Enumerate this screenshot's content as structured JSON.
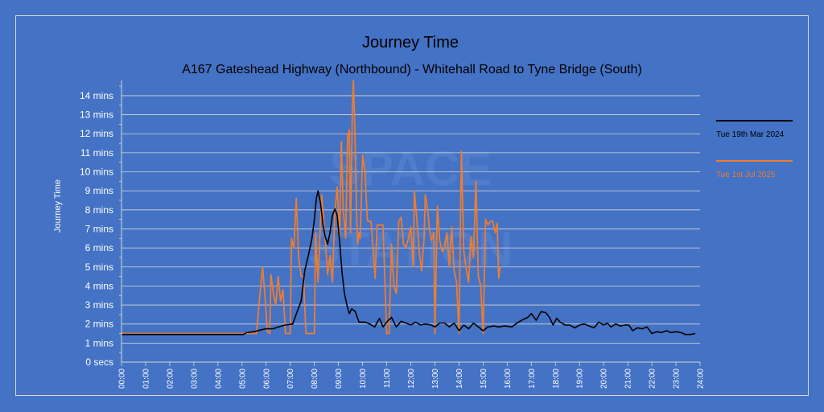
{
  "chart_data": {
    "type": "line",
    "title": "Journey Time",
    "subtitle": "A167 Gateshead Highway (Northbound) - Whitehall Road to Tyne Bridge (South)",
    "ylabel": "Journey Time",
    "xlabel": "",
    "y_unit": "mins",
    "ylim": [
      0,
      14.8
    ],
    "xlim": [
      0,
      24
    ],
    "y_ticks": [
      "0 secs",
      "1 mins",
      "2 mins",
      "3 mins",
      "4 mins",
      "5 mins",
      "6 mins",
      "7 mins",
      "8 mins",
      "9 mins",
      "10 mins",
      "11 mins",
      "12 mins",
      "13 mins",
      "14 mins"
    ],
    "x_ticks": [
      "00:00",
      "01:00",
      "02:00",
      "03:00",
      "04:00",
      "05:00",
      "06:00",
      "07:00",
      "08:00",
      "09:00",
      "10:00",
      "11:00",
      "12:00",
      "13:00",
      "14:00",
      "15:00",
      "16:00",
      "17:00",
      "18:00",
      "19:00",
      "20:00",
      "21:00",
      "22:00",
      "23:00",
      "24:00"
    ],
    "grid": true,
    "legend_position": "right",
    "series": [
      {
        "name": "Tue 19th Mar 2024",
        "color": "#000000",
        "points": [
          [
            0,
            1.45
          ],
          [
            5.05,
            1.45
          ],
          [
            5.2,
            1.55
          ],
          [
            5.5,
            1.6
          ],
          [
            5.8,
            1.7
          ],
          [
            6.0,
            1.75
          ],
          [
            6.3,
            1.75
          ],
          [
            6.5,
            1.85
          ],
          [
            6.8,
            1.95
          ],
          [
            7.1,
            2.0
          ],
          [
            7.3,
            2.7
          ],
          [
            7.45,
            3.2
          ],
          [
            7.6,
            4.8
          ],
          [
            7.75,
            5.6
          ],
          [
            7.9,
            6.5
          ],
          [
            8.0,
            7.5
          ],
          [
            8.08,
            8.6
          ],
          [
            8.15,
            9.0
          ],
          [
            8.25,
            8.4
          ],
          [
            8.35,
            7.3
          ],
          [
            8.45,
            6.6
          ],
          [
            8.55,
            6.2
          ],
          [
            8.65,
            6.8
          ],
          [
            8.75,
            7.7
          ],
          [
            8.85,
            8.05
          ],
          [
            8.95,
            7.7
          ],
          [
            9.05,
            6.3
          ],
          [
            9.15,
            4.7
          ],
          [
            9.25,
            3.6
          ],
          [
            9.35,
            3.0
          ],
          [
            9.45,
            2.55
          ],
          [
            9.55,
            2.8
          ],
          [
            9.7,
            2.65
          ],
          [
            9.85,
            2.1
          ],
          [
            10.1,
            2.1
          ],
          [
            10.3,
            2.0
          ],
          [
            10.5,
            1.85
          ],
          [
            10.7,
            2.3
          ],
          [
            10.85,
            1.85
          ],
          [
            11.0,
            2.1
          ],
          [
            11.2,
            2.35
          ],
          [
            11.4,
            1.85
          ],
          [
            11.6,
            2.15
          ],
          [
            11.8,
            2.05
          ],
          [
            12.0,
            1.95
          ],
          [
            12.2,
            2.1
          ],
          [
            12.4,
            1.95
          ],
          [
            12.6,
            2.0
          ],
          [
            12.85,
            1.95
          ],
          [
            13.0,
            1.85
          ],
          [
            13.2,
            2.05
          ],
          [
            13.4,
            2.05
          ],
          [
            13.6,
            1.85
          ],
          [
            13.8,
            2.05
          ],
          [
            14.0,
            1.65
          ],
          [
            14.2,
            1.95
          ],
          [
            14.4,
            1.75
          ],
          [
            14.6,
            2.05
          ],
          [
            14.8,
            1.85
          ],
          [
            15.0,
            1.65
          ],
          [
            15.2,
            1.85
          ],
          [
            15.45,
            1.9
          ],
          [
            15.65,
            1.85
          ],
          [
            15.9,
            1.9
          ],
          [
            16.2,
            1.85
          ],
          [
            16.4,
            2.05
          ],
          [
            16.6,
            2.2
          ],
          [
            16.85,
            2.35
          ],
          [
            17.0,
            2.55
          ],
          [
            17.2,
            2.2
          ],
          [
            17.4,
            2.65
          ],
          [
            17.6,
            2.6
          ],
          [
            17.75,
            2.35
          ],
          [
            17.9,
            1.95
          ],
          [
            18.05,
            2.3
          ],
          [
            18.2,
            2.1
          ],
          [
            18.4,
            1.95
          ],
          [
            18.6,
            1.95
          ],
          [
            18.8,
            1.8
          ],
          [
            19.0,
            1.95
          ],
          [
            19.2,
            2.0
          ],
          [
            19.4,
            1.9
          ],
          [
            19.6,
            1.8
          ],
          [
            19.8,
            2.1
          ],
          [
            20.0,
            1.95
          ],
          [
            20.15,
            2.05
          ],
          [
            20.3,
            1.85
          ],
          [
            20.5,
            2.0
          ],
          [
            20.7,
            1.9
          ],
          [
            20.9,
            1.95
          ],
          [
            21.05,
            1.95
          ],
          [
            21.2,
            1.65
          ],
          [
            21.4,
            1.8
          ],
          [
            21.6,
            1.75
          ],
          [
            21.8,
            1.85
          ],
          [
            22.0,
            1.5
          ],
          [
            22.2,
            1.6
          ],
          [
            22.4,
            1.55
          ],
          [
            22.6,
            1.65
          ],
          [
            22.8,
            1.55
          ],
          [
            23.0,
            1.6
          ],
          [
            23.2,
            1.55
          ],
          [
            23.4,
            1.45
          ],
          [
            23.6,
            1.45
          ],
          [
            23.8,
            1.5
          ]
        ]
      },
      {
        "name": "Tue 1st Jul 2025",
        "color": "#ed7d31",
        "points": [
          [
            0,
            1.55
          ],
          [
            0.05,
            1.5
          ],
          [
            5.05,
            1.5
          ],
          [
            5.2,
            1.5
          ],
          [
            5.6,
            1.5
          ],
          [
            5.7,
            3.0
          ],
          [
            5.85,
            5.0
          ],
          [
            5.95,
            3.5
          ],
          [
            6.05,
            1.6
          ],
          [
            6.15,
            1.5
          ],
          [
            6.2,
            4.6
          ],
          [
            6.3,
            3.6
          ],
          [
            6.4,
            3.0
          ],
          [
            6.5,
            4.5
          ],
          [
            6.6,
            3.2
          ],
          [
            6.7,
            3.8
          ],
          [
            6.8,
            1.5
          ],
          [
            6.9,
            1.5
          ],
          [
            7.0,
            1.5
          ],
          [
            7.05,
            6.5
          ],
          [
            7.15,
            6.0
          ],
          [
            7.25,
            8.6
          ],
          [
            7.35,
            5.5
          ],
          [
            7.45,
            4.5
          ],
          [
            7.55,
            4.5
          ],
          [
            7.65,
            1.5
          ],
          [
            7.85,
            1.5
          ],
          [
            8.0,
            1.5
          ],
          [
            8.05,
            6.8
          ],
          [
            8.15,
            4.2
          ],
          [
            8.3,
            8.8
          ],
          [
            8.45,
            6.5
          ],
          [
            8.55,
            4.6
          ],
          [
            8.65,
            5.6
          ],
          [
            8.75,
            4.2
          ],
          [
            8.85,
            7.9
          ],
          [
            8.95,
            9.2
          ],
          [
            9.05,
            6.5
          ],
          [
            9.12,
            11.6
          ],
          [
            9.2,
            8.0
          ],
          [
            9.3,
            6.5
          ],
          [
            9.38,
            11.9
          ],
          [
            9.45,
            12.2
          ],
          [
            9.5,
            6.8
          ],
          [
            9.58,
            13.6
          ],
          [
            9.62,
            14.8
          ],
          [
            9.68,
            12.2
          ],
          [
            9.75,
            7.8
          ],
          [
            9.8,
            6.2
          ],
          [
            9.85,
            6.8
          ],
          [
            9.9,
            6.5
          ],
          [
            10.0,
            10.9
          ],
          [
            10.1,
            10.0
          ],
          [
            10.2,
            7.4
          ],
          [
            10.35,
            7.4
          ],
          [
            10.45,
            5.7
          ],
          [
            10.52,
            4.4
          ],
          [
            10.6,
            7.2
          ],
          [
            10.7,
            7.2
          ],
          [
            10.85,
            7.2
          ],
          [
            11.0,
            1.5
          ],
          [
            11.1,
            1.5
          ],
          [
            11.2,
            6.2
          ],
          [
            11.3,
            4.0
          ],
          [
            11.4,
            3.6
          ],
          [
            11.5,
            7.4
          ],
          [
            11.6,
            7.6
          ],
          [
            11.7,
            6.2
          ],
          [
            11.8,
            6.0
          ],
          [
            11.9,
            6.5
          ],
          [
            12.0,
            7.1
          ],
          [
            12.1,
            5.0
          ],
          [
            12.15,
            9.0
          ],
          [
            12.25,
            7.5
          ],
          [
            12.35,
            5.8
          ],
          [
            12.45,
            4.8
          ],
          [
            12.55,
            6.5
          ],
          [
            12.6,
            8.8
          ],
          [
            12.7,
            8.0
          ],
          [
            12.78,
            6.9
          ],
          [
            12.85,
            6.4
          ],
          [
            12.95,
            6.8
          ],
          [
            13.0,
            1.5
          ],
          [
            13.1,
            8.2
          ],
          [
            13.2,
            6.4
          ],
          [
            13.3,
            5.8
          ],
          [
            13.4,
            6.0
          ],
          [
            13.5,
            6.8
          ],
          [
            13.6,
            5.0
          ],
          [
            13.7,
            7.1
          ],
          [
            13.8,
            4.8
          ],
          [
            13.9,
            4.2
          ],
          [
            14.0,
            1.5
          ],
          [
            14.1,
            11.1
          ],
          [
            14.2,
            5.8
          ],
          [
            14.3,
            4.9
          ],
          [
            14.4,
            4.2
          ],
          [
            14.5,
            6.6
          ],
          [
            14.6,
            5.5
          ],
          [
            14.7,
            9.5
          ],
          [
            14.8,
            4.5
          ],
          [
            14.9,
            4.0
          ],
          [
            15.0,
            1.5
          ],
          [
            15.1,
            7.5
          ],
          [
            15.2,
            7.2
          ],
          [
            15.3,
            7.4
          ],
          [
            15.4,
            7.4
          ],
          [
            15.5,
            6.8
          ],
          [
            15.58,
            7.3
          ],
          [
            15.65,
            4.4
          ],
          [
            15.7,
            5.0
          ]
        ]
      }
    ]
  },
  "watermark": "SPACE STATION"
}
